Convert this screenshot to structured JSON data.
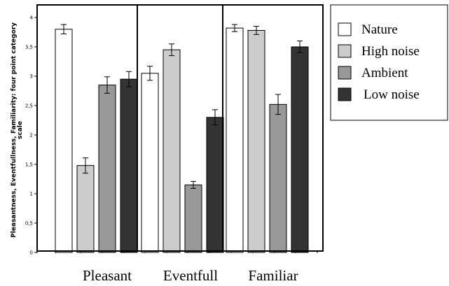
{
  "chart_data": {
    "type": "bar",
    "ylabel_lines": [
      "Pleasantness, Eventfullness, Familiarity: four point category",
      "scale"
    ],
    "xlabel": "",
    "categories": [
      "Pleasant",
      "Eventfull",
      "Familiar"
    ],
    "ylim": [
      0,
      4
    ],
    "yticks": [
      {
        "value": 0,
        "label": "0"
      },
      {
        "value": 0.5,
        "label": "0,5"
      },
      {
        "value": 1,
        "label": "1"
      },
      {
        "value": 1.5,
        "label": "1,5"
      },
      {
        "value": 2,
        "label": "2"
      },
      {
        "value": 2.5,
        "label": "2,5"
      },
      {
        "value": 3,
        "label": "3"
      },
      {
        "value": 3.5,
        "label": "3,5"
      },
      {
        "value": 4,
        "label": "4"
      }
    ],
    "grid": false,
    "legend_position": "right",
    "error_bars": true,
    "series": [
      {
        "name": "Nature",
        "color": "#ffffff",
        "values": [
          3.8,
          3.05,
          3.82
        ],
        "errors": [
          0.08,
          0.12,
          0.06
        ]
      },
      {
        "name": "High noise",
        "color": "#cccccc",
        "values": [
          1.48,
          3.45,
          3.78
        ],
        "errors": [
          0.13,
          0.1,
          0.07
        ]
      },
      {
        "name": "Ambient",
        "color": "#999999",
        "values": [
          2.85,
          1.15,
          2.52
        ],
        "errors": [
          0.14,
          0.06,
          0.17
        ]
      },
      {
        "name": "Low noise",
        "color": "#333333",
        "values": [
          2.95,
          2.3,
          3.5
        ],
        "errors": [
          0.13,
          0.13,
          0.1
        ]
      }
    ]
  }
}
